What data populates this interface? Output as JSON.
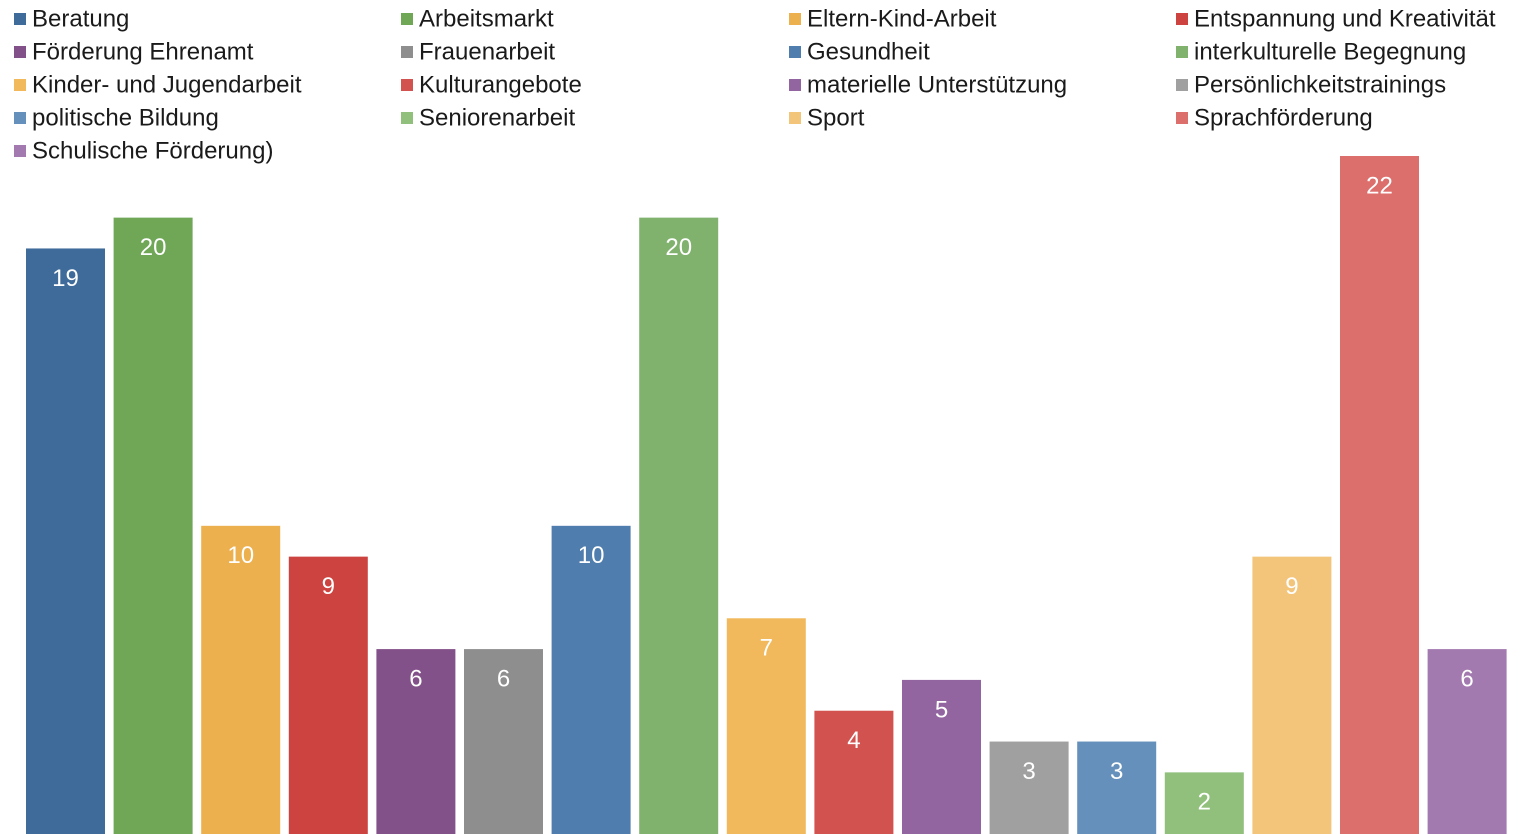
{
  "chart_data": {
    "type": "bar",
    "series": [
      {
        "name": "Beratung",
        "color": "#3e6b9a",
        "values": [
          19
        ]
      },
      {
        "name": "Arbeitsmarkt",
        "color": "#6fa757",
        "values": [
          20
        ]
      },
      {
        "name": "Eltern-Kind-Arbeit",
        "color": "#edb04e",
        "values": [
          10
        ]
      },
      {
        "name": "Entspannung und Kreativität",
        "color": "#cc4340",
        "values": [
          9
        ]
      },
      {
        "name": "Förderung Ehrenamt",
        "color": "#835189",
        "values": [
          6
        ]
      },
      {
        "name": "Frauenarbeit",
        "color": "#8e8e8e",
        "values": [
          6
        ]
      },
      {
        "name": "Gesundheit",
        "color": "#4f7dad",
        "values": [
          10
        ]
      },
      {
        "name": "interkulturelle Begegnung",
        "color": "#80b26d",
        "values": [
          20
        ]
      },
      {
        "name": "Kinder- und Jugendarbeit",
        "color": "#f1b95c",
        "values": [
          7
        ]
      },
      {
        "name": "Kulturangebote",
        "color": "#d25250",
        "values": [
          4
        ]
      },
      {
        "name": "materielle Unterstützung",
        "color": "#9265a0",
        "values": [
          5
        ]
      },
      {
        "name": "Persönlichkeitstrainings",
        "color": "#a0a0a0",
        "values": [
          3
        ]
      },
      {
        "name": "politische Bildung",
        "color": "#6590bc",
        "values": [
          3
        ]
      },
      {
        "name": "Seniorenarbeit",
        "color": "#90c07c",
        "values": [
          2
        ]
      },
      {
        "name": "Sport",
        "color": "#f3c57b",
        "values": [
          9
        ]
      },
      {
        "name": "Sprachförderung",
        "color": "#dc6e6b",
        "values": [
          22
        ]
      },
      {
        "name": "Schulische Förderung)",
        "color": "#a37aaf",
        "values": [
          6
        ]
      }
    ],
    "legend": "top"
  }
}
